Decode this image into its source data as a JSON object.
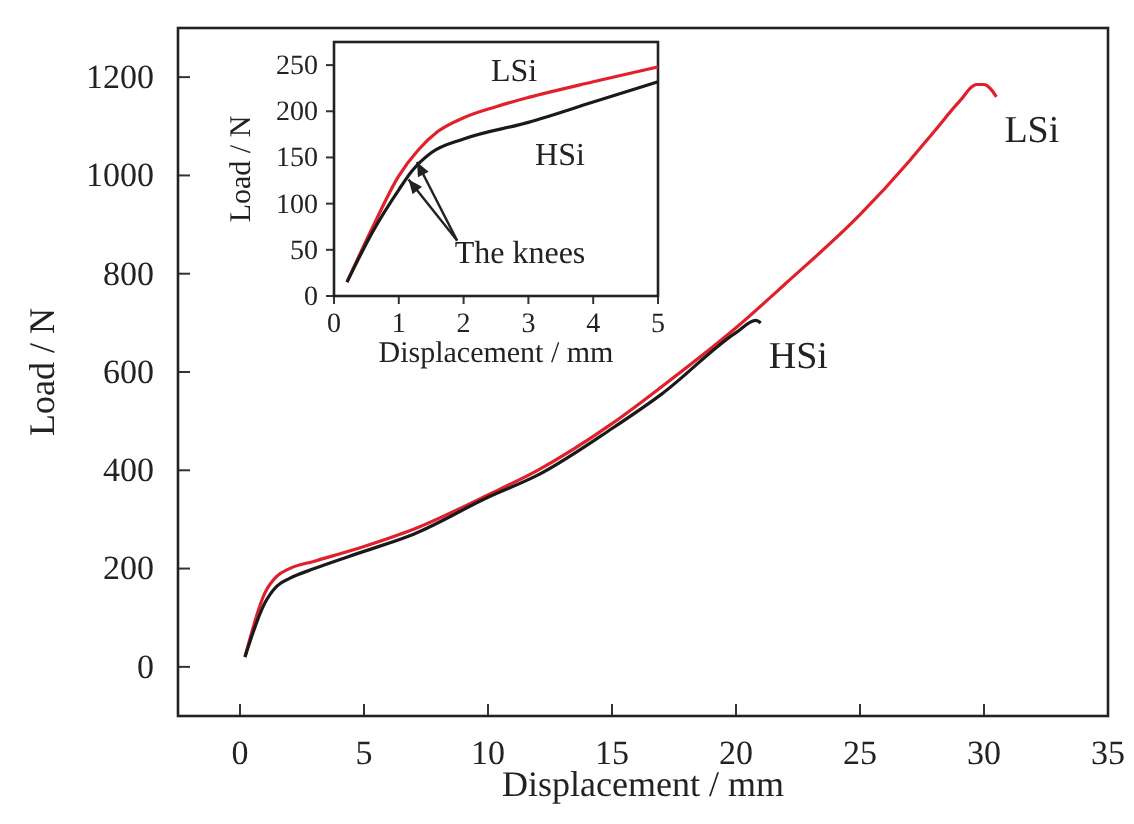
{
  "chart_data": [
    {
      "type": "line",
      "xlabel": "Displacement / mm",
      "ylabel": "Load / N",
      "xlim": [
        -2.5,
        35
      ],
      "ylim": [
        -100,
        1300
      ],
      "xticks": [
        0,
        5,
        10,
        15,
        20,
        25,
        30,
        35
      ],
      "yticks": [
        0,
        200,
        400,
        600,
        800,
        1000,
        1200
      ],
      "grid": false,
      "series": [
        {
          "name": "LSi",
          "color": "#e0202a",
          "x": [
            0.2,
            1,
            1.5,
            2,
            3,
            5,
            7,
            10,
            12,
            15,
            17,
            20,
            22,
            25,
            27,
            28,
            29,
            29.7,
            30,
            30.5
          ],
          "values": [
            20,
            150,
            185,
            200,
            215,
            245,
            280,
            350,
            400,
            495,
            570,
            690,
            780,
            920,
            1030,
            1090,
            1150,
            1185,
            1185,
            1160
          ]
        },
        {
          "name": "HSi",
          "color": "#1a1a1a",
          "x": [
            0.2,
            1,
            1.5,
            2,
            3,
            5,
            7,
            10,
            12,
            15,
            17,
            20,
            20.8,
            21
          ],
          "values": [
            20,
            130,
            165,
            180,
            200,
            235,
            270,
            345,
            390,
            485,
            555,
            680,
            705,
            700
          ]
        }
      ]
    },
    {
      "type": "line",
      "xlabel": "Displacement / mm",
      "ylabel": "Load / N",
      "xlim": [
        0,
        5
      ],
      "ylim": [
        0,
        275
      ],
      "xticks": [
        0,
        1,
        2,
        3,
        4,
        5
      ],
      "yticks": [
        0,
        50,
        100,
        150,
        200,
        250
      ],
      "grid": false,
      "series": [
        {
          "name": "LSi",
          "color": "#e0202a",
          "x": [
            0.2,
            0.6,
            1,
            1.3,
            1.6,
            2,
            2.5,
            3,
            4,
            5
          ],
          "values": [
            15,
            75,
            130,
            158,
            178,
            193,
            205,
            215,
            232,
            248
          ]
        },
        {
          "name": "HSi",
          "color": "#1a1a1a",
          "x": [
            0.2,
            0.6,
            1,
            1.2,
            1.5,
            2,
            3,
            4,
            5
          ],
          "values": [
            15,
            70,
            115,
            135,
            155,
            170,
            188,
            210,
            232
          ]
        }
      ],
      "annotations": [
        "The knees"
      ]
    }
  ]
}
